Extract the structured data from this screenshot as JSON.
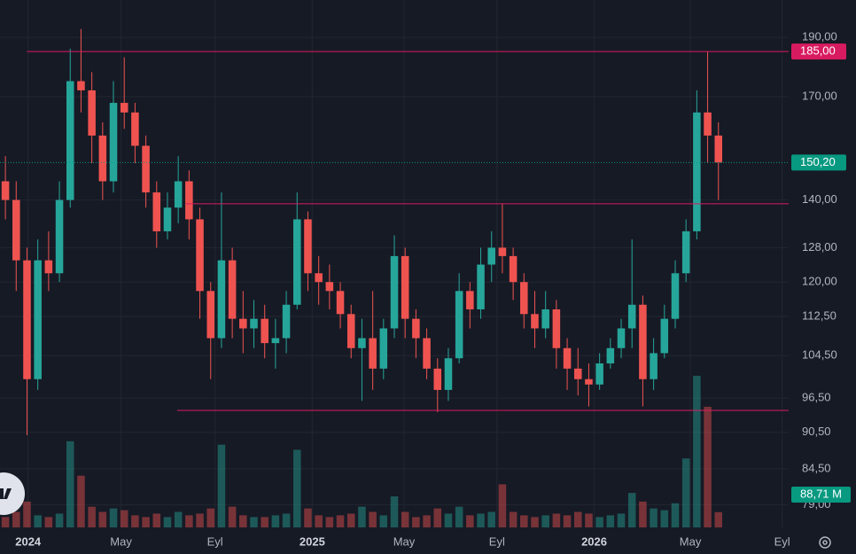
{
  "chart_data": {
    "type": "candlestick",
    "log": true,
    "grid": true,
    "up_color": "#26a69a",
    "down_color": "#ef5350",
    "x": [
      0,
      1,
      2,
      3,
      4,
      5,
      6,
      7,
      8,
      9,
      10,
      11,
      12,
      13,
      14,
      15,
      16,
      17,
      18,
      19,
      20,
      21,
      22,
      23,
      24,
      25,
      26,
      27,
      28,
      29,
      30,
      31,
      32,
      33,
      34,
      35,
      36,
      37,
      38,
      39,
      40,
      41,
      42,
      43,
      44,
      45,
      46,
      47,
      48,
      49,
      50,
      51,
      52,
      53,
      54,
      55,
      56,
      57,
      58,
      59,
      60,
      61,
      62,
      63,
      64,
      65,
      66
    ],
    "candles": [
      [
        145,
        152,
        135,
        140
      ],
      [
        140,
        145,
        118,
        125
      ],
      [
        125,
        128,
        90,
        100
      ],
      [
        100,
        130,
        98,
        125
      ],
      [
        125,
        132,
        118,
        122
      ],
      [
        122,
        145,
        120,
        140
      ],
      [
        140,
        186,
        138,
        175
      ],
      [
        175,
        193,
        165,
        172
      ],
      [
        172,
        178,
        150,
        158
      ],
      [
        158,
        162,
        140,
        145
      ],
      [
        145,
        175,
        142,
        168
      ],
      [
        168,
        183,
        160,
        165
      ],
      [
        165,
        168,
        150,
        155
      ],
      [
        155,
        158,
        138,
        142
      ],
      [
        142,
        145,
        128,
        132
      ],
      [
        132,
        142,
        130,
        138
      ],
      [
        138,
        152,
        134,
        145
      ],
      [
        145,
        148,
        130,
        135
      ],
      [
        135,
        138,
        112,
        118
      ],
      [
        118,
        120,
        100,
        108
      ],
      [
        108,
        142,
        106,
        125
      ],
      [
        125,
        128,
        108,
        112
      ],
      [
        112,
        118,
        105,
        110
      ],
      [
        110,
        116,
        106,
        112
      ],
      [
        112,
        115,
        104,
        107
      ],
      [
        107,
        112,
        102,
        108
      ],
      [
        108,
        118,
        105,
        115
      ],
      [
        115,
        142,
        114,
        135
      ],
      [
        135,
        137,
        118,
        122
      ],
      [
        122,
        126,
        115,
        120
      ],
      [
        120,
        124,
        114,
        118
      ],
      [
        118,
        120,
        110,
        113
      ],
      [
        113,
        115,
        104,
        106
      ],
      [
        106,
        112,
        96,
        108
      ],
      [
        108,
        118,
        98,
        102
      ],
      [
        102,
        112,
        100,
        110
      ],
      [
        110,
        131,
        108,
        126
      ],
      [
        126,
        128,
        108,
        112
      ],
      [
        112,
        114,
        104,
        108
      ],
      [
        108,
        110,
        100,
        102
      ],
      [
        102,
        104,
        94,
        98
      ],
      [
        98,
        106,
        96,
        104
      ],
      [
        104,
        122,
        103,
        118
      ],
      [
        118,
        120,
        110,
        114
      ],
      [
        114,
        128,
        112,
        124
      ],
      [
        124,
        132,
        120,
        128
      ],
      [
        128,
        139,
        122,
        126
      ],
      [
        126,
        128,
        116,
        120
      ],
      [
        120,
        122,
        110,
        113
      ],
      [
        113,
        118,
        106,
        110
      ],
      [
        110,
        118,
        108,
        114
      ],
      [
        114,
        116,
        102,
        106
      ],
      [
        106,
        108,
        98,
        102
      ],
      [
        102,
        106,
        97,
        100
      ],
      [
        100,
        103,
        95,
        99
      ],
      [
        99,
        105,
        98,
        103
      ],
      [
        103,
        108,
        102,
        106
      ],
      [
        106,
        112,
        104,
        110
      ],
      [
        110,
        130,
        106,
        115
      ],
      [
        115,
        117,
        95,
        100
      ],
      [
        100,
        108,
        98,
        105
      ],
      [
        105,
        115,
        104,
        112
      ],
      [
        112,
        125,
        110,
        122
      ],
      [
        122,
        135,
        120,
        132
      ],
      [
        132,
        172,
        130,
        165
      ],
      [
        165,
        185,
        150,
        158
      ],
      [
        158,
        162,
        140,
        150.2
      ]
    ],
    "volume": {
      "values": [
        60,
        90,
        150,
        70,
        60,
        80,
        500,
        300,
        120,
        90,
        110,
        100,
        70,
        60,
        80,
        60,
        90,
        70,
        80,
        110,
        480,
        120,
        70,
        60,
        60,
        70,
        80,
        450,
        110,
        70,
        60,
        70,
        80,
        120,
        90,
        70,
        180,
        90,
        60,
        70,
        110,
        80,
        120,
        70,
        80,
        90,
        250,
        90,
        70,
        60,
        70,
        80,
        70,
        90,
        80,
        60,
        70,
        80,
        200,
        150,
        110,
        100,
        140,
        400,
        880,
        700,
        88.71
      ],
      "vlim": [
        0,
        900
      ],
      "last_label": "88,71 M",
      "last_color": "#089981"
    },
    "xlim": [
      -0.5,
      72.5
    ],
    "xticks": [
      {
        "value": 2.1,
        "label": "2024"
      },
      {
        "value": 10.7,
        "label": "May"
      },
      {
        "value": 19.4,
        "label": "Eyl"
      },
      {
        "value": 28.4,
        "label": "2025"
      },
      {
        "value": 36.9,
        "label": "May"
      },
      {
        "value": 45.5,
        "label": "Eyl"
      },
      {
        "value": 54.5,
        "label": "2026"
      },
      {
        "value": 63.4,
        "label": "May"
      },
      {
        "value": 71.9,
        "label": "Eyl"
      }
    ],
    "ylim": [
      75.7,
      203.8
    ],
    "yticks": [
      {
        "value": 190,
        "label": "190,00"
      },
      {
        "value": 170,
        "label": "170,00"
      },
      {
        "value": 140,
        "label": "140,00"
      },
      {
        "value": 128,
        "label": "128,00"
      },
      {
        "value": 120,
        "label": "120,00"
      },
      {
        "value": 112.5,
        "label": "112,50"
      },
      {
        "value": 104.5,
        "label": "104,50"
      },
      {
        "value": 96.5,
        "label": "96,50"
      },
      {
        "value": 90.5,
        "label": "90,50"
      },
      {
        "value": 84.5,
        "label": "84,50"
      },
      {
        "value": 79,
        "label": "79,00"
      }
    ],
    "hlines": [
      {
        "value": 185,
        "from": 2,
        "label": "185,00",
        "color": "#d81b60"
      },
      {
        "value": 139,
        "from": 16.7,
        "color": "#d81b60"
      },
      {
        "value": 94.3,
        "from": 15.9,
        "color": "#d81b60"
      }
    ],
    "last_price": {
      "value": 150.2,
      "label": "150,20",
      "color": "#089981"
    }
  }
}
